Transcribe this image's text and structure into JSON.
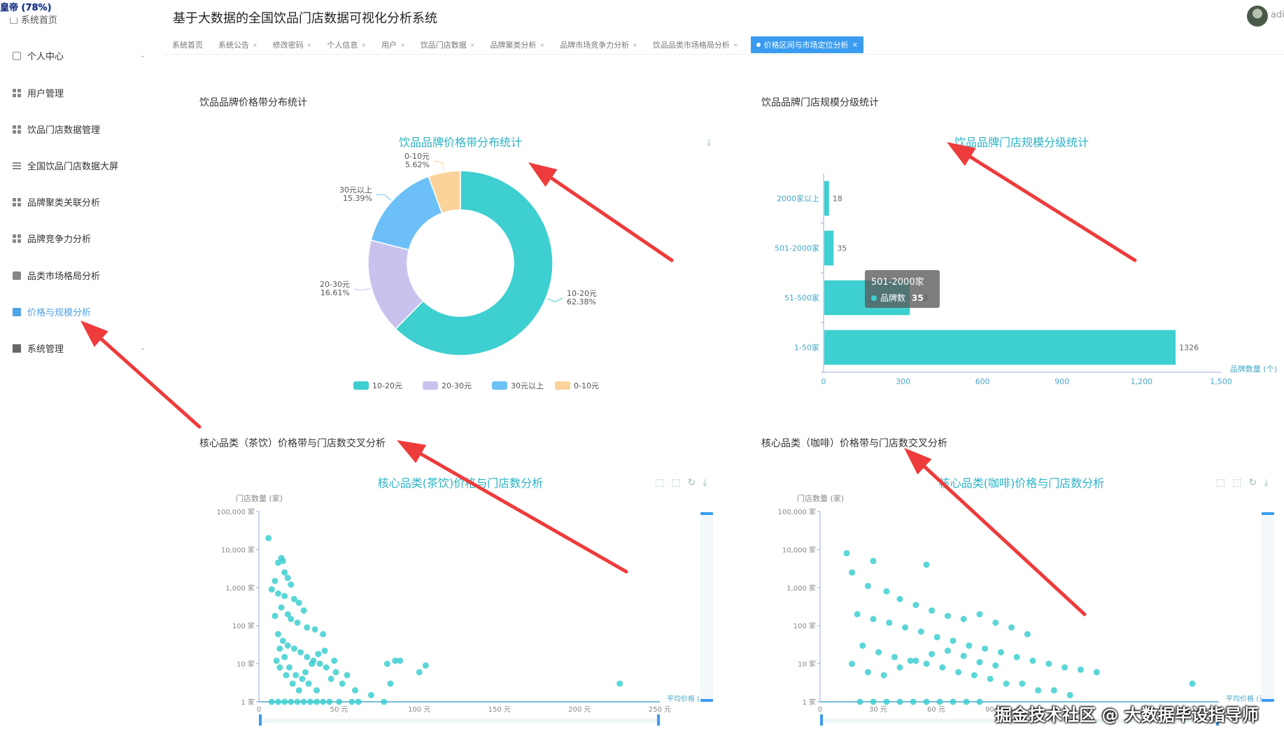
{
  "corner_badge": "皇帝 (78%)",
  "sidebar": {
    "home": "系统首页",
    "items": [
      {
        "label": "个人中心",
        "icon": "card-icon",
        "chevron": "⌄"
      },
      {
        "label": "用户管理",
        "icon": "grid-icon"
      },
      {
        "label": "饮品门店数据管理",
        "icon": "grid-icon"
      },
      {
        "label": "全国饮品门店数据大屏",
        "icon": "list-icon"
      },
      {
        "label": "品牌聚类关联分析",
        "icon": "grid-icon"
      },
      {
        "label": "品牌竞争力分析",
        "icon": "grid-icon"
      },
      {
        "label": "品类市场格局分析",
        "icon": "chat-icon"
      },
      {
        "label": "价格与规模分析",
        "icon": "screen-icon",
        "active": true
      },
      {
        "label": "系统管理",
        "icon": "settings-icon",
        "chevron": "⌄"
      }
    ]
  },
  "header": {
    "title": "基于大数据的全国饮品门店数据可视化分析系统",
    "admin": "adi",
    "tabs": [
      {
        "label": "系统首页"
      },
      {
        "label": "系统公告"
      },
      {
        "label": "修改密码"
      },
      {
        "label": "个人信息"
      },
      {
        "label": "用户"
      },
      {
        "label": "饮品门店数据"
      },
      {
        "label": "品牌聚类分析"
      },
      {
        "label": "品牌市场竞争力分析"
      },
      {
        "label": "饮品品类市场格局分析"
      },
      {
        "label": "价格区间与市场定位分析",
        "active": true
      }
    ]
  },
  "panels": {
    "p1_label": "饮品品牌价格带分布统计",
    "p2_label": "饮品品牌门店规模分级统计",
    "p3_label": "核心品类（茶饮）价格带与门店数交叉分析",
    "p4_label": "核心品类（咖啡）价格带与门店数交叉分析"
  },
  "tooltip": {
    "title": "501-2000家",
    "series": "品牌数",
    "value": "35"
  },
  "watermark": "掘金技术社区 @ 大数据毕设指导师",
  "colors": {
    "teal": "#3ecfd0",
    "lavender": "#c9c2ee",
    "blue": "#6cc0f7",
    "peach": "#fbd39a",
    "title": "#2bb3c6",
    "active": "#3a9cf0"
  },
  "chart_data": [
    {
      "type": "pie",
      "title": "饮品品牌价格带分布统计",
      "donut": true,
      "slices": [
        {
          "name": "10-20元",
          "value": 62.38,
          "label": "10-20元",
          "pct": "62.38%",
          "color": "#3ecfd0"
        },
        {
          "name": "20-30元",
          "value": 16.61,
          "label": "20-30元",
          "pct": "16.61%",
          "color": "#c9c2ee"
        },
        {
          "name": "30元以上",
          "value": 15.39,
          "label": "30元以上",
          "pct": "15.39%",
          "color": "#6cc0f7"
        },
        {
          "name": "0-10元",
          "value": 5.62,
          "label": "0-10元",
          "pct": "5.62%",
          "color": "#fbd39a"
        }
      ],
      "legend_position": "bottom"
    },
    {
      "type": "bar",
      "orientation": "horizontal",
      "title": "饮品品牌门店规模分级统计",
      "categories": [
        "1-50家",
        "51-500家",
        "501-2000家",
        "2000家以上"
      ],
      "values": [
        1326,
        323,
        35,
        18
      ],
      "value_labels": [
        "1326",
        "323",
        "35",
        "18"
      ],
      "xlim": [
        0,
        1500
      ],
      "xticks": [
        0,
        300,
        600,
        900,
        1200,
        1500
      ],
      "xtick_labels": [
        "0",
        "300",
        "600",
        "900",
        "1,200",
        "1,500"
      ],
      "xlabel": "品牌数量 (个)"
    },
    {
      "type": "scatter",
      "title": "核心品类(茶饮)价格与门店数分析",
      "ylabel": "门店数量 (家)",
      "xlabel": "平均价格 (元)",
      "yscale": "log",
      "ylim": [
        1,
        100000
      ],
      "yticks": [
        "1 家",
        "10 家",
        "100 家",
        "1,000 家",
        "10,000 家",
        "100,000 家"
      ],
      "xlim": [
        0,
        250
      ],
      "xticks": [
        "0",
        "50 元",
        "100 元",
        "150 元",
        "200 元",
        "250 元"
      ],
      "points": [
        [
          6,
          20000
        ],
        [
          15,
          5000
        ],
        [
          14,
          6000
        ],
        [
          12,
          4500
        ],
        [
          16,
          2500
        ],
        [
          10,
          1500
        ],
        [
          18,
          1800
        ],
        [
          20,
          1200
        ],
        [
          8,
          900
        ],
        [
          12,
          700
        ],
        [
          16,
          600
        ],
        [
          22,
          500
        ],
        [
          25,
          400
        ],
        [
          28,
          250
        ],
        [
          14,
          300
        ],
        [
          18,
          200
        ],
        [
          10,
          180
        ],
        [
          20,
          150
        ],
        [
          24,
          120
        ],
        [
          30,
          90
        ],
        [
          35,
          80
        ],
        [
          40,
          60
        ],
        [
          12,
          60
        ],
        [
          15,
          40
        ],
        [
          18,
          30
        ],
        [
          22,
          25
        ],
        [
          26,
          20
        ],
        [
          30,
          15
        ],
        [
          34,
          12
        ],
        [
          38,
          10
        ],
        [
          42,
          8
        ],
        [
          48,
          6
        ],
        [
          13,
          25
        ],
        [
          16,
          15
        ],
        [
          19,
          8
        ],
        [
          23,
          5
        ],
        [
          27,
          4
        ],
        [
          31,
          3
        ],
        [
          36,
          2
        ],
        [
          45,
          4
        ],
        [
          52,
          3
        ],
        [
          60,
          2
        ],
        [
          70,
          1.5
        ],
        [
          80,
          10
        ],
        [
          85,
          12
        ],
        [
          88,
          12
        ],
        [
          100,
          6
        ],
        [
          104,
          9
        ],
        [
          82,
          3
        ],
        [
          78,
          1
        ],
        [
          225,
          3
        ],
        [
          8,
          1
        ],
        [
          12,
          1
        ],
        [
          16,
          1
        ],
        [
          20,
          1
        ],
        [
          24,
          1
        ],
        [
          28,
          1
        ],
        [
          32,
          1
        ],
        [
          36,
          1
        ],
        [
          40,
          1
        ],
        [
          44,
          1
        ],
        [
          50,
          1
        ],
        [
          58,
          1
        ],
        [
          62,
          1
        ],
        [
          11,
          12
        ],
        [
          13,
          8
        ],
        [
          17,
          5
        ],
        [
          21,
          3
        ],
        [
          25,
          2
        ],
        [
          29,
          6
        ],
        [
          33,
          10
        ],
        [
          37,
          18
        ],
        [
          41,
          22
        ],
        [
          47,
          12
        ],
        [
          55,
          5
        ]
      ]
    },
    {
      "type": "scatter",
      "title": "核心品类(咖啡)价格与门店数分析",
      "ylabel": "门店数量 (家)",
      "xlabel": "平均价格 (元)",
      "yscale": "log",
      "ylim": [
        1,
        100000
      ],
      "yticks": [
        "1 家",
        "10 家",
        "100 家",
        "1,000 家",
        "10,000 家",
        "100,000 家"
      ],
      "xlim": [
        0,
        150
      ],
      "xticks": [
        "0",
        "30 元",
        "60 元",
        "90 元"
      ],
      "points": [
        [
          10,
          8000
        ],
        [
          20,
          5000
        ],
        [
          40,
          4000
        ],
        [
          12,
          2500
        ],
        [
          18,
          1100
        ],
        [
          25,
          800
        ],
        [
          30,
          500
        ],
        [
          36,
          350
        ],
        [
          42,
          250
        ],
        [
          48,
          180
        ],
        [
          54,
          150
        ],
        [
          60,
          200
        ],
        [
          66,
          120
        ],
        [
          72,
          90
        ],
        [
          78,
          60
        ],
        [
          14,
          200
        ],
        [
          20,
          150
        ],
        [
          26,
          120
        ],
        [
          32,
          90
        ],
        [
          38,
          70
        ],
        [
          44,
          50
        ],
        [
          50,
          40
        ],
        [
          56,
          30
        ],
        [
          62,
          25
        ],
        [
          68,
          20
        ],
        [
          74,
          15
        ],
        [
          80,
          12
        ],
        [
          86,
          10
        ],
        [
          92,
          8
        ],
        [
          98,
          7
        ],
        [
          104,
          6
        ],
        [
          16,
          30
        ],
        [
          22,
          20
        ],
        [
          28,
          15
        ],
        [
          34,
          12
        ],
        [
          40,
          10
        ],
        [
          46,
          8
        ],
        [
          52,
          6
        ],
        [
          58,
          5
        ],
        [
          64,
          4
        ],
        [
          70,
          3
        ],
        [
          76,
          3
        ],
        [
          82,
          2
        ],
        [
          88,
          2
        ],
        [
          94,
          1.5
        ],
        [
          140,
          3
        ],
        [
          15,
          1
        ],
        [
          20,
          1
        ],
        [
          25,
          1
        ],
        [
          30,
          1
        ],
        [
          35,
          1
        ],
        [
          40,
          1
        ],
        [
          45,
          1
        ],
        [
          50,
          1
        ],
        [
          55,
          1
        ],
        [
          60,
          1
        ],
        [
          12,
          10
        ],
        [
          18,
          6
        ],
        [
          24,
          5
        ],
        [
          30,
          8
        ],
        [
          36,
          12
        ],
        [
          42,
          18
        ],
        [
          48,
          22
        ],
        [
          54,
          16
        ],
        [
          60,
          11
        ],
        [
          66,
          9
        ]
      ]
    }
  ]
}
